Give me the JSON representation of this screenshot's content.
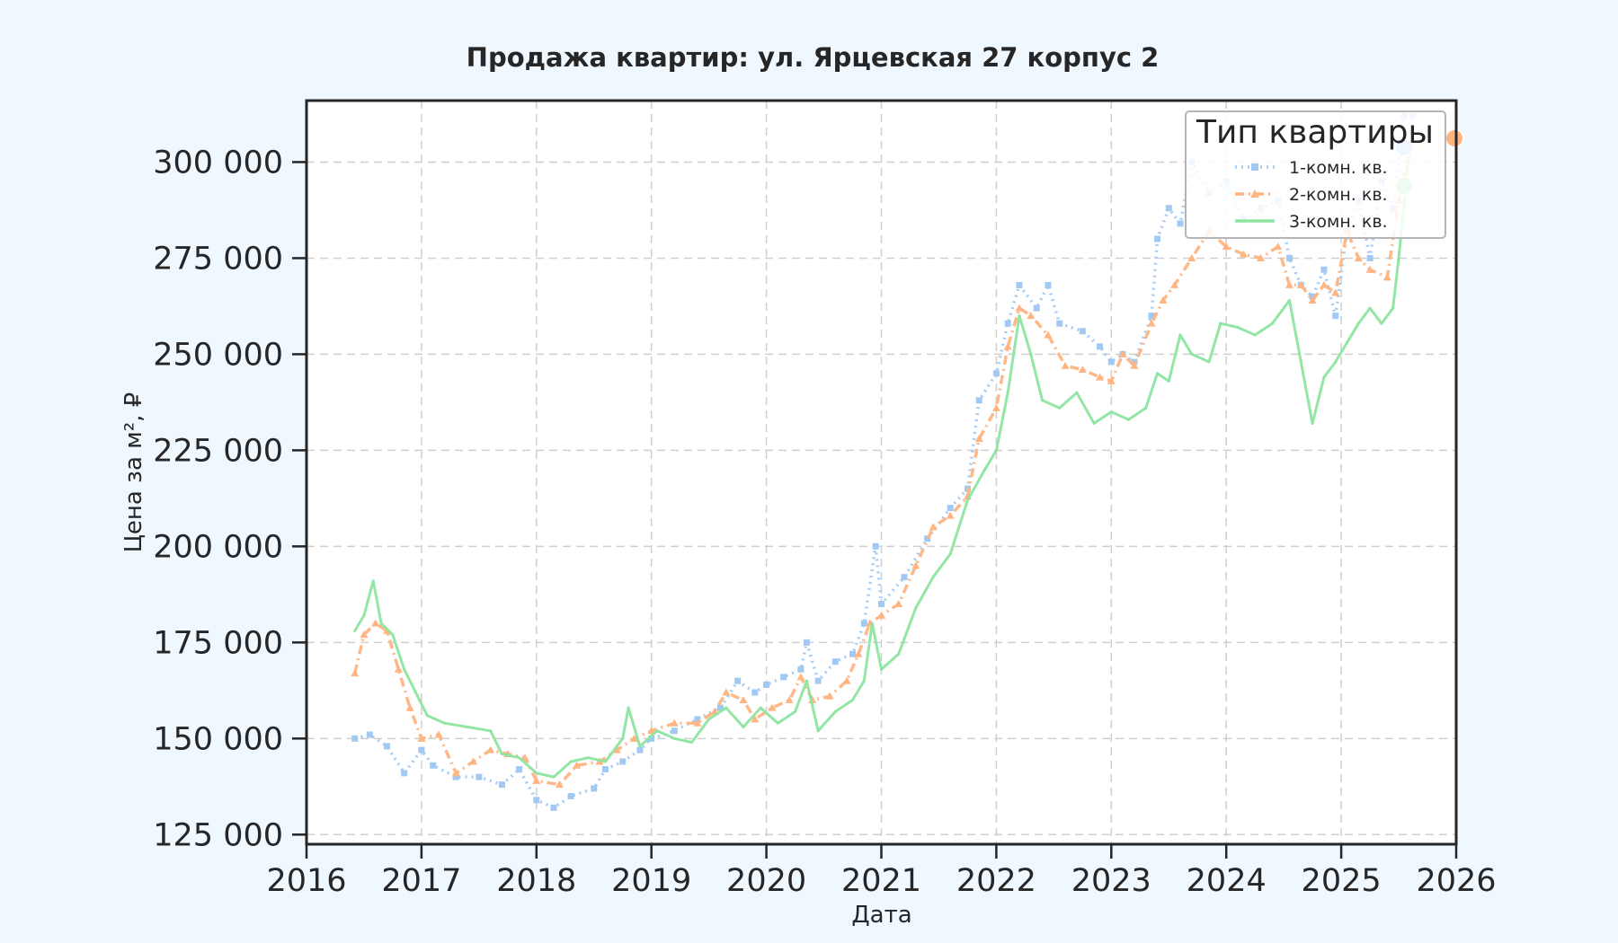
{
  "chart_data": {
    "type": "line",
    "title": "Продажа квартир: ул. Ярцевская 27 корпус 2",
    "xlabel": "Дата",
    "ylabel": "Цена за м², ₽",
    "xlim": [
      2016,
      2026
    ],
    "ylim": [
      122500,
      316000
    ],
    "x_ticks": [
      2016,
      2017,
      2018,
      2019,
      2020,
      2021,
      2022,
      2023,
      2024,
      2025,
      2026
    ],
    "x_tick_labels": [
      "2016",
      "2017",
      "2018",
      "2019",
      "2020",
      "2021",
      "2022",
      "2023",
      "2024",
      "2025",
      "2026"
    ],
    "y_ticks": [
      125000,
      150000,
      175000,
      200000,
      225000,
      250000,
      275000,
      300000
    ],
    "y_tick_labels": [
      "125 000",
      "150 000",
      "175 000",
      "200 000",
      "225 000",
      "250 000",
      "275 000",
      "300 000"
    ],
    "grid": true,
    "legend": {
      "title": "Тип квартиры",
      "position": "top-right"
    },
    "series": [
      {
        "name": "1-комн. кв.",
        "color": "#a1c9f4",
        "style": "dotted-square",
        "points": [
          [
            2016.42,
            150000
          ],
          [
            2016.55,
            151000
          ],
          [
            2016.7,
            148000
          ],
          [
            2016.85,
            141000
          ],
          [
            2017.0,
            147000
          ],
          [
            2017.1,
            143000
          ],
          [
            2017.3,
            140000
          ],
          [
            2017.5,
            140000
          ],
          [
            2017.7,
            138000
          ],
          [
            2017.85,
            142000
          ],
          [
            2018.0,
            134000
          ],
          [
            2018.15,
            132000
          ],
          [
            2018.3,
            135000
          ],
          [
            2018.5,
            137000
          ],
          [
            2018.6,
            142000
          ],
          [
            2018.75,
            144000
          ],
          [
            2018.9,
            147000
          ],
          [
            2019.0,
            150000
          ],
          [
            2019.2,
            152000
          ],
          [
            2019.4,
            155000
          ],
          [
            2019.6,
            158000
          ],
          [
            2019.75,
            165000
          ],
          [
            2019.9,
            162000
          ],
          [
            2020.0,
            164000
          ],
          [
            2020.15,
            166000
          ],
          [
            2020.3,
            168000
          ],
          [
            2020.35,
            175000
          ],
          [
            2020.45,
            165000
          ],
          [
            2020.6,
            170000
          ],
          [
            2020.75,
            172000
          ],
          [
            2020.85,
            180000
          ],
          [
            2020.95,
            200000
          ],
          [
            2021.0,
            185000
          ],
          [
            2021.2,
            192000
          ],
          [
            2021.4,
            202000
          ],
          [
            2021.6,
            210000
          ],
          [
            2021.75,
            215000
          ],
          [
            2021.85,
            238000
          ],
          [
            2022.0,
            245000
          ],
          [
            2022.1,
            258000
          ],
          [
            2022.2,
            268000
          ],
          [
            2022.35,
            262000
          ],
          [
            2022.45,
            268000
          ],
          [
            2022.55,
            258000
          ],
          [
            2022.75,
            256000
          ],
          [
            2022.9,
            252000
          ],
          [
            2023.0,
            248000
          ],
          [
            2023.1,
            250000
          ],
          [
            2023.2,
            248000
          ],
          [
            2023.35,
            260000
          ],
          [
            2023.4,
            280000
          ],
          [
            2023.5,
            288000
          ],
          [
            2023.6,
            284000
          ],
          [
            2023.7,
            300000
          ],
          [
            2023.85,
            292000
          ],
          [
            2024.0,
            295000
          ],
          [
            2024.15,
            285000
          ],
          [
            2024.3,
            288000
          ],
          [
            2024.45,
            290000
          ],
          [
            2024.55,
            275000
          ],
          [
            2024.65,
            268000
          ],
          [
            2024.75,
            265000
          ],
          [
            2024.85,
            272000
          ],
          [
            2024.95,
            260000
          ],
          [
            2025.05,
            282000
          ],
          [
            2025.15,
            290000
          ],
          [
            2025.25,
            275000
          ],
          [
            2025.35,
            295000
          ],
          [
            2025.45,
            288000
          ],
          [
            2025.55,
            312000
          ],
          [
            2025.62,
            312000
          ]
        ]
      },
      {
        "name": "2-комн. кв.",
        "color": "#ffb482",
        "style": "dashdot-triangle",
        "points": [
          [
            2016.42,
            167000
          ],
          [
            2016.5,
            177000
          ],
          [
            2016.6,
            180000
          ],
          [
            2016.7,
            178000
          ],
          [
            2016.8,
            168000
          ],
          [
            2016.9,
            158000
          ],
          [
            2017.0,
            150000
          ],
          [
            2017.15,
            151000
          ],
          [
            2017.3,
            141000
          ],
          [
            2017.45,
            144000
          ],
          [
            2017.6,
            147000
          ],
          [
            2017.75,
            146000
          ],
          [
            2017.9,
            145000
          ],
          [
            2018.0,
            139000
          ],
          [
            2018.2,
            138000
          ],
          [
            2018.35,
            143000
          ],
          [
            2018.55,
            144000
          ],
          [
            2018.7,
            147000
          ],
          [
            2018.85,
            150000
          ],
          [
            2019.0,
            152000
          ],
          [
            2019.2,
            154000
          ],
          [
            2019.4,
            154000
          ],
          [
            2019.55,
            157000
          ],
          [
            2019.65,
            162000
          ],
          [
            2019.8,
            160000
          ],
          [
            2019.9,
            155000
          ],
          [
            2020.05,
            158000
          ],
          [
            2020.2,
            160000
          ],
          [
            2020.3,
            166000
          ],
          [
            2020.4,
            160000
          ],
          [
            2020.55,
            161000
          ],
          [
            2020.7,
            165000
          ],
          [
            2020.8,
            172000
          ],
          [
            2020.9,
            180000
          ],
          [
            2021.0,
            182000
          ],
          [
            2021.15,
            185000
          ],
          [
            2021.3,
            195000
          ],
          [
            2021.45,
            205000
          ],
          [
            2021.6,
            208000
          ],
          [
            2021.75,
            213000
          ],
          [
            2021.85,
            228000
          ],
          [
            2022.0,
            236000
          ],
          [
            2022.1,
            252000
          ],
          [
            2022.2,
            262000
          ],
          [
            2022.3,
            260000
          ],
          [
            2022.45,
            255000
          ],
          [
            2022.6,
            247000
          ],
          [
            2022.75,
            246000
          ],
          [
            2022.9,
            244000
          ],
          [
            2023.0,
            243000
          ],
          [
            2023.1,
            250000
          ],
          [
            2023.2,
            247000
          ],
          [
            2023.35,
            258000
          ],
          [
            2023.45,
            264000
          ],
          [
            2023.55,
            268000
          ],
          [
            2023.7,
            275000
          ],
          [
            2023.85,
            282000
          ],
          [
            2024.0,
            278000
          ],
          [
            2024.15,
            276000
          ],
          [
            2024.3,
            275000
          ],
          [
            2024.45,
            278000
          ],
          [
            2024.55,
            268000
          ],
          [
            2024.65,
            268000
          ],
          [
            2024.75,
            264000
          ],
          [
            2024.85,
            268000
          ],
          [
            2024.95,
            266000
          ],
          [
            2025.05,
            282000
          ],
          [
            2025.15,
            275000
          ],
          [
            2025.25,
            272000
          ],
          [
            2025.4,
            270000
          ],
          [
            2025.5,
            290000
          ],
          [
            2025.6,
            305000
          ]
        ]
      },
      {
        "name": "3-комн. кв.",
        "color": "#8de5a1",
        "style": "solid",
        "points": [
          [
            2016.42,
            178000
          ],
          [
            2016.5,
            182000
          ],
          [
            2016.58,
            191000
          ],
          [
            2016.65,
            180000
          ],
          [
            2016.75,
            177000
          ],
          [
            2016.85,
            168000
          ],
          [
            2016.95,
            162000
          ],
          [
            2017.05,
            156000
          ],
          [
            2017.2,
            154000
          ],
          [
            2017.4,
            153000
          ],
          [
            2017.6,
            152000
          ],
          [
            2017.7,
            146000
          ],
          [
            2017.85,
            145000
          ],
          [
            2018.0,
            141000
          ],
          [
            2018.15,
            140000
          ],
          [
            2018.3,
            144000
          ],
          [
            2018.45,
            145000
          ],
          [
            2018.6,
            144000
          ],
          [
            2018.75,
            150000
          ],
          [
            2018.8,
            158000
          ],
          [
            2018.9,
            148000
          ],
          [
            2019.05,
            152000
          ],
          [
            2019.2,
            150000
          ],
          [
            2019.35,
            149000
          ],
          [
            2019.5,
            155000
          ],
          [
            2019.65,
            158000
          ],
          [
            2019.8,
            153000
          ],
          [
            2019.95,
            158000
          ],
          [
            2020.1,
            154000
          ],
          [
            2020.25,
            157000
          ],
          [
            2020.35,
            165000
          ],
          [
            2020.45,
            152000
          ],
          [
            2020.6,
            157000
          ],
          [
            2020.75,
            160000
          ],
          [
            2020.85,
            165000
          ],
          [
            2020.92,
            180000
          ],
          [
            2021.0,
            168000
          ],
          [
            2021.15,
            172000
          ],
          [
            2021.3,
            184000
          ],
          [
            2021.45,
            192000
          ],
          [
            2021.6,
            198000
          ],
          [
            2021.75,
            212000
          ],
          [
            2021.9,
            220000
          ],
          [
            2022.0,
            225000
          ],
          [
            2022.1,
            240000
          ],
          [
            2022.2,
            260000
          ],
          [
            2022.3,
            250000
          ],
          [
            2022.4,
            238000
          ],
          [
            2022.55,
            236000
          ],
          [
            2022.7,
            240000
          ],
          [
            2022.85,
            232000
          ],
          [
            2023.0,
            235000
          ],
          [
            2023.15,
            233000
          ],
          [
            2023.3,
            236000
          ],
          [
            2023.4,
            245000
          ],
          [
            2023.5,
            243000
          ],
          [
            2023.6,
            255000
          ],
          [
            2023.7,
            250000
          ],
          [
            2023.85,
            248000
          ],
          [
            2023.95,
            258000
          ],
          [
            2024.1,
            257000
          ],
          [
            2024.25,
            255000
          ],
          [
            2024.4,
            258000
          ],
          [
            2024.55,
            264000
          ],
          [
            2024.65,
            248000
          ],
          [
            2024.75,
            232000
          ],
          [
            2024.85,
            244000
          ],
          [
            2024.95,
            248000
          ],
          [
            2025.05,
            253000
          ],
          [
            2025.15,
            258000
          ],
          [
            2025.25,
            262000
          ],
          [
            2025.35,
            258000
          ],
          [
            2025.45,
            262000
          ],
          [
            2025.5,
            275000
          ],
          [
            2025.55,
            290000
          ],
          [
            2025.6,
            305000
          ]
        ]
      }
    ]
  }
}
